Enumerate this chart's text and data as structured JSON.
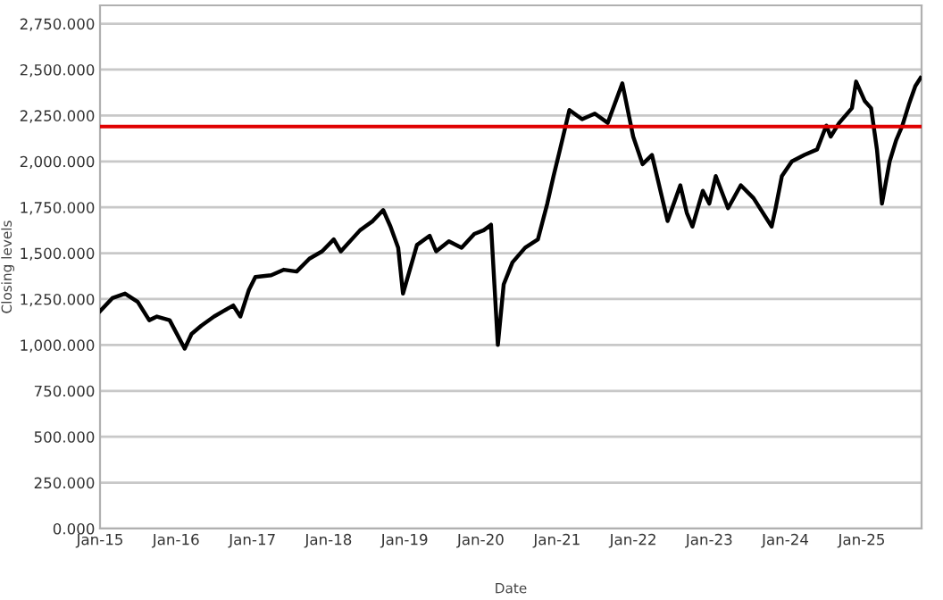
{
  "chart_data": {
    "type": "line",
    "xlabel": "Date",
    "ylabel": "Closing levels",
    "x": [
      "2015-01-02",
      "2015-03-01",
      "2015-05-01",
      "2015-07-01",
      "2015-08-25",
      "2015-10-01",
      "2015-12-01",
      "2016-02-11",
      "2016-03-15",
      "2016-05-01",
      "2016-07-01",
      "2016-08-15",
      "2016-10-01",
      "2016-11-04",
      "2016-12-15",
      "2017-01-15",
      "2017-04-01",
      "2017-06-01",
      "2017-08-01",
      "2017-10-01",
      "2017-12-01",
      "2018-01-26",
      "2018-03-01",
      "2018-06-01",
      "2018-08-01",
      "2018-09-20",
      "2018-10-25",
      "2018-12-01",
      "2018-12-24",
      "2019-03-01",
      "2019-05-01",
      "2019-06-01",
      "2019-08-01",
      "2019-10-01",
      "2019-12-01",
      "2020-01-15",
      "2020-02-19",
      "2020-03-23",
      "2020-04-20",
      "2020-06-01",
      "2020-08-01",
      "2020-10-01",
      "2020-11-15",
      "2020-12-15",
      "2021-01-15",
      "2021-03-01",
      "2021-05-01",
      "2021-07-01",
      "2021-09-01",
      "2021-11-10",
      "2022-01-01",
      "2022-02-15",
      "2022-04-01",
      "2022-06-15",
      "2022-08-15",
      "2022-09-15",
      "2022-10-12",
      "2022-12-01",
      "2023-01-01",
      "2023-02-01",
      "2023-04-01",
      "2023-06-01",
      "2023-08-01",
      "2023-10-27",
      "2023-11-15",
      "2023-12-15",
      "2024-02-01",
      "2024-04-01",
      "2024-06-01",
      "2024-07-15",
      "2024-08-05",
      "2024-09-15",
      "2024-11-15",
      "2024-12-05",
      "2025-01-15",
      "2025-02-15",
      "2025-03-15",
      "2025-04-08",
      "2025-05-15",
      "2025-06-15",
      "2025-07-15",
      "2025-08-15",
      "2025-09-15",
      "2025-10-10"
    ],
    "values": [
      1185,
      1255,
      1280,
      1235,
      1135,
      1155,
      1135,
      980,
      1060,
      1105,
      1155,
      1185,
      1215,
      1155,
      1300,
      1370,
      1380,
      1410,
      1400,
      1470,
      1510,
      1575,
      1510,
      1625,
      1675,
      1735,
      1645,
      1530,
      1280,
      1545,
      1595,
      1510,
      1565,
      1530,
      1605,
      1625,
      1655,
      1000,
      1330,
      1450,
      1530,
      1575,
      1770,
      1920,
      2065,
      2280,
      2230,
      2260,
      2210,
      2425,
      2135,
      1985,
      2035,
      1675,
      1870,
      1720,
      1645,
      1840,
      1770,
      1920,
      1745,
      1870,
      1800,
      1645,
      1745,
      1920,
      2000,
      2035,
      2065,
      2195,
      2135,
      2210,
      2290,
      2435,
      2330,
      2290,
      2065,
      1770,
      2000,
      2115,
      2195,
      2310,
      2410,
      2455
    ],
    "color": "#000000",
    "line_style": "solid",
    "marker": "none",
    "xlim": [
      "2015-01-01",
      "2025-10-15"
    ],
    "xticks": [
      {
        "value": "2015-01-01",
        "label": "Jan-15"
      },
      {
        "value": "2016-01-01",
        "label": "Jan-16"
      },
      {
        "value": "2017-01-01",
        "label": "Jan-17"
      },
      {
        "value": "2018-01-01",
        "label": "Jan-18"
      },
      {
        "value": "2019-01-01",
        "label": "Jan-19"
      },
      {
        "value": "2020-01-01",
        "label": "Jan-20"
      },
      {
        "value": "2021-01-01",
        "label": "Jan-21"
      },
      {
        "value": "2022-01-01",
        "label": "Jan-22"
      },
      {
        "value": "2023-01-01",
        "label": "Jan-23"
      },
      {
        "value": "2024-01-01",
        "label": "Jan-24"
      },
      {
        "value": "2025-01-01",
        "label": "Jan-25"
      }
    ],
    "ylim": [
      0,
      2850
    ],
    "yticks": [
      {
        "value": 0,
        "label": "0.000"
      },
      {
        "value": 250,
        "label": "250.000"
      },
      {
        "value": 500,
        "label": "500.000"
      },
      {
        "value": 750,
        "label": "750.000"
      },
      {
        "value": 1000,
        "label": "1,000.000"
      },
      {
        "value": 1250,
        "label": "1,250.000"
      },
      {
        "value": 1500,
        "label": "1,500.000"
      },
      {
        "value": 1750,
        "label": "1,750.000"
      },
      {
        "value": 2000,
        "label": "2,000.000"
      },
      {
        "value": 2250,
        "label": "2,250.000"
      },
      {
        "value": 2500,
        "label": "2,500.000"
      },
      {
        "value": 2750,
        "label": "2,750.000"
      }
    ],
    "ref_lines": [
      {
        "axis": "y",
        "value": 2190,
        "color": "#e00000"
      }
    ],
    "grid": "y",
    "legend": false
  }
}
